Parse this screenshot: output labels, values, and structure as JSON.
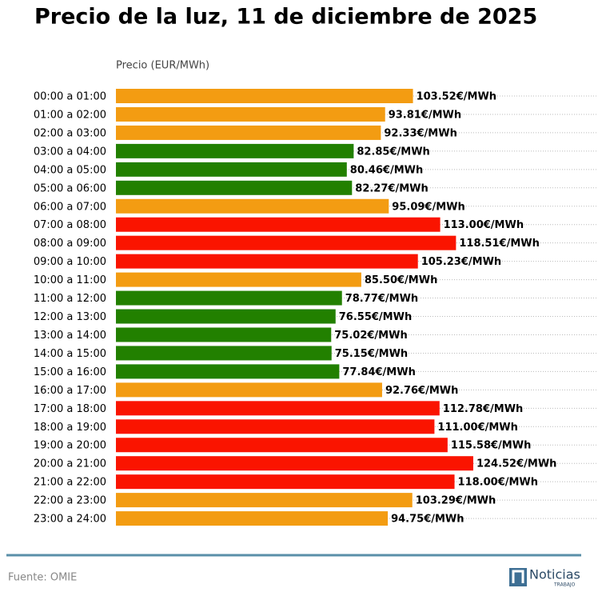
{
  "chart_data": {
    "type": "barh",
    "title": "Precio de la luz, 11 de diciembre de 2025",
    "xlabel": "Precio (EUR/MWh)",
    "categories": [
      "00:00 a 01:00",
      "01:00 a 02:00",
      "02:00 a 03:00",
      "03:00 a 04:00",
      "04:00 a 05:00",
      "05:00 a 06:00",
      "06:00 a 07:00",
      "07:00 a 08:00",
      "08:00 a 09:00",
      "09:00 a 10:00",
      "10:00 a 11:00",
      "11:00 a 12:00",
      "12:00 a 13:00",
      "13:00 a 14:00",
      "14:00 a 15:00",
      "15:00 a 16:00",
      "16:00 a 17:00",
      "17:00 a 18:00",
      "18:00 a 19:00",
      "19:00 a 20:00",
      "20:00 a 21:00",
      "21:00 a 22:00",
      "22:00 a 23:00",
      "23:00 a 24:00"
    ],
    "values": [
      103.52,
      93.81,
      92.33,
      82.85,
      80.46,
      82.27,
      95.09,
      113.0,
      118.51,
      105.23,
      85.5,
      78.77,
      76.55,
      75.02,
      75.15,
      77.84,
      92.76,
      112.78,
      111.0,
      115.58,
      124.52,
      118.0,
      103.29,
      94.75
    ],
    "value_labels": [
      "103.52€/MWh",
      "93.81€/MWh",
      "92.33€/MWh",
      "82.85€/MWh",
      "80.46€/MWh",
      "82.27€/MWh",
      "95.09€/MWh",
      "113.00€/MWh",
      "118.51€/MWh",
      "105.23€/MWh",
      "85.50€/MWh",
      "78.77€/MWh",
      "76.55€/MWh",
      "75.02€/MWh",
      "75.15€/MWh",
      "77.84€/MWh",
      "92.76€/MWh",
      "112.78€/MWh",
      "111.00€/MWh",
      "115.58€/MWh",
      "124.52€/MWh",
      "118.00€/MWh",
      "103.29€/MWh",
      "94.75€/MWh"
    ],
    "colors": [
      "#f39c12",
      "#f39c12",
      "#f39c12",
      "#228000",
      "#228000",
      "#228000",
      "#f39c12",
      "#fa1400",
      "#fa1400",
      "#fa1400",
      "#f39c12",
      "#228000",
      "#228000",
      "#228000",
      "#228000",
      "#228000",
      "#f39c12",
      "#fa1400",
      "#fa1400",
      "#fa1400",
      "#fa1400",
      "#fa1400",
      "#f39c12",
      "#f39c12"
    ],
    "xlim": [
      0,
      168
    ],
    "source": "Fuente: OMIE",
    "logo": {
      "name": "Noticias",
      "sub": "TRABAJO"
    }
  }
}
